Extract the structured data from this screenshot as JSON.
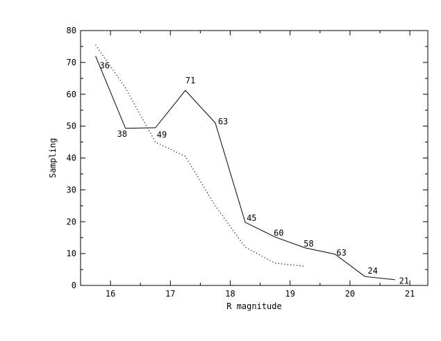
{
  "chart_data": {
    "type": "line",
    "title": "",
    "xlabel": "R magnitude",
    "ylabel": "Sampling",
    "xlim": [
      15.5,
      21.3
    ],
    "ylim": [
      0,
      80
    ],
    "x_ticks": [
      16,
      17,
      18,
      19,
      20,
      21
    ],
    "y_ticks": [
      0,
      10,
      20,
      30,
      40,
      50,
      60,
      70,
      80
    ],
    "grid": false,
    "series": [
      {
        "style": "solid",
        "x": [
          15.75,
          16.25,
          16.75,
          17.25,
          17.75,
          18.25,
          18.75,
          19.25,
          19.75,
          20.25,
          20.75
        ],
        "y": [
          72,
          49.3,
          49.5,
          61.2,
          51,
          19.8,
          15.2,
          11.8,
          9.8,
          2.8,
          1.8
        ],
        "labels": [
          "36",
          "38",
          "49",
          "71",
          "63",
          "45",
          "60",
          "58",
          "63",
          "24",
          "21"
        ]
      },
      {
        "style": "dotted",
        "x": [
          15.75,
          16.25,
          16.75,
          17.25,
          17.75,
          18.25,
          18.75,
          19.25
        ],
        "y": [
          75.5,
          62,
          45,
          40.5,
          25,
          12,
          7,
          6
        ]
      }
    ]
  }
}
